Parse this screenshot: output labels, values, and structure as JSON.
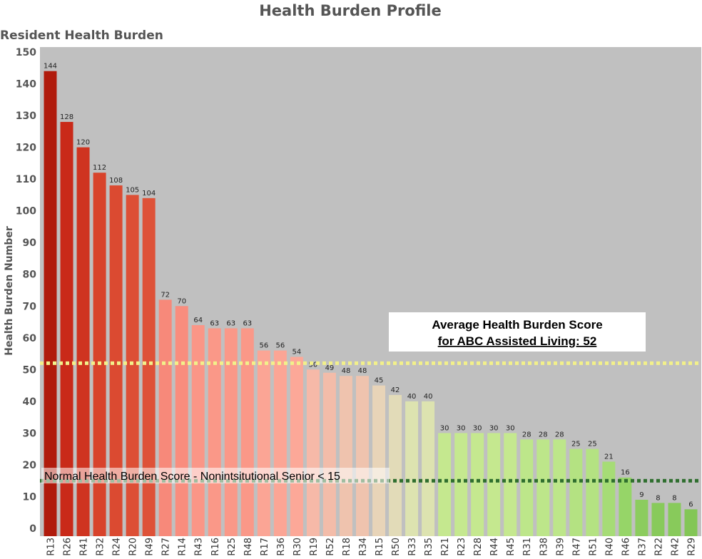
{
  "chart_data": {
    "type": "bar",
    "title": "Health Burden Profile",
    "subtitle": "Resident Health Burden",
    "xlabel": "",
    "ylabel": "Health Burden Number",
    "ylim": [
      0,
      150
    ],
    "yticks": [
      0,
      10,
      20,
      30,
      40,
      50,
      60,
      70,
      80,
      90,
      100,
      110,
      120,
      130,
      140,
      150
    ],
    "grid": false,
    "categories": [
      "R13",
      "R26",
      "R41",
      "R32",
      "R24",
      "R20",
      "R49",
      "R27",
      "R14",
      "R43",
      "R16",
      "R25",
      "R48",
      "R17",
      "R36",
      "R30",
      "R19",
      "R52",
      "R18",
      "R34",
      "R15",
      "R50",
      "R33",
      "R35",
      "R21",
      "R23",
      "R28",
      "R44",
      "R45",
      "R31",
      "R38",
      "R39",
      "R47",
      "R51",
      "R40",
      "R46",
      "R37",
      "R22",
      "R42",
      "R29"
    ],
    "values": [
      144,
      128,
      120,
      112,
      108,
      105,
      104,
      72,
      70,
      64,
      63,
      63,
      63,
      56,
      56,
      54,
      50,
      49,
      48,
      48,
      45,
      42,
      40,
      40,
      30,
      30,
      30,
      30,
      30,
      28,
      28,
      28,
      25,
      25,
      21,
      16,
      9,
      8,
      8,
      6
    ],
    "colors": [
      "#b01b0c",
      "#c92a19",
      "#cf3420",
      "#d8432b",
      "#db4a31",
      "#dd4f36",
      "#de5238",
      "#f7897a",
      "#f98d7e",
      "#fa9687",
      "#fa9888",
      "#fa9888",
      "#fa9888",
      "#fba595",
      "#fba595",
      "#fca898",
      "#f6b9a8",
      "#f3bca9",
      "#efc3ae",
      "#efc3ae",
      "#e8d4b8",
      "#e2dbb8",
      "#dde3b0",
      "#dde3b0",
      "#c5e88f",
      "#c5e88f",
      "#c5e88f",
      "#c5e88f",
      "#c5e88f",
      "#bde68a",
      "#bde68a",
      "#bde68a",
      "#b4e282",
      "#b4e282",
      "#a6dc76",
      "#96d568",
      "#8ccc5e",
      "#88ca5b",
      "#88ca5b",
      "#83c656"
    ],
    "reference_lines": [
      {
        "name": "average",
        "value": 52,
        "color": "#f2f08a",
        "style": "dotted"
      },
      {
        "name": "normal",
        "value": 15,
        "color": "#2e6e2e",
        "style": "dotted"
      }
    ],
    "annotations": {
      "average_line1": "Average Health Burden Score",
      "average_line2": "for ABC Assisted Living:  52",
      "normal": "Normal Health Burden Score - Nonintsitutional Senior < 15"
    },
    "plot_background": "#c0c0c0"
  }
}
